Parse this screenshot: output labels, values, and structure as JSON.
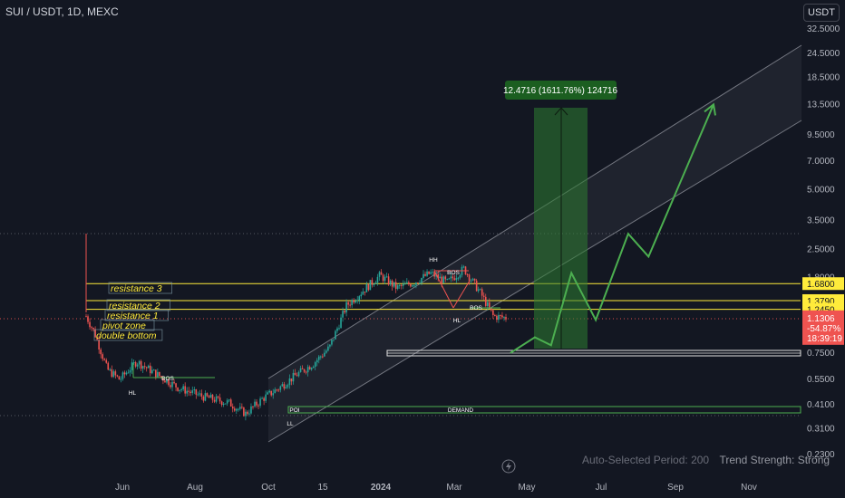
{
  "header": {
    "symbol": "SUI / USDT, 1D, MEXC",
    "currency_button": "USDT"
  },
  "footer": {
    "period_text": "Auto-Selected Period: 200",
    "strength_text": "Trend Strength: Strong"
  },
  "colors": {
    "background": "#131722",
    "up": "#26a69a",
    "down": "#ef5350",
    "zone_line": "#ffeb3b",
    "projection": "#4caf50",
    "target_box": "#2e7d32",
    "channel": "#b2b5be"
  },
  "chart_data": {
    "type": "candlestick",
    "title": "SUI / USDT, 1D, MEXC",
    "y_scale": "log",
    "ylim": [
      0.2,
      35
    ],
    "y_ticks": [
      "32.5000",
      "24.5000",
      "18.5000",
      "13.5000",
      "9.5000",
      "7.0000",
      "5.0000",
      "3.5000",
      "2.5000",
      "1.8000",
      "0.7500",
      "0.5500",
      "0.4100",
      "0.3100",
      "0.2300"
    ],
    "x_ticks": [
      "Jun",
      "Aug",
      "Oct",
      "15",
      "2024",
      "Mar",
      "May",
      "Jul",
      "Sep",
      "Nov"
    ],
    "price_markers": [
      {
        "label": "1.6800",
        "value": 1.68,
        "style": "yellow"
      },
      {
        "label": "1.3790",
        "value": 1.379,
        "style": "yellow"
      },
      {
        "label": "1.2450",
        "value": 1.245,
        "style": "yellow"
      }
    ],
    "current_price": {
      "price": "1.1306",
      "change": "-54.87%",
      "countdown": "18:39:19",
      "value": 1.1306
    },
    "zone_labels": [
      "resistance 3",
      "resistance 2",
      "resistance 1",
      "pivot zone",
      "double bottom"
    ],
    "structure_labels": [
      "BOS",
      "HL",
      "HH",
      "BOS",
      "HL",
      "BOS",
      "POI",
      "LL",
      "DEMAND"
    ],
    "measure_label": "12.4716 (1611.76%) 124716",
    "price_path": [
      [
        0.0,
        1.15
      ],
      [
        0.02,
        0.95
      ],
      [
        0.05,
        0.62
      ],
      [
        0.08,
        0.55
      ],
      [
        0.12,
        0.68
      ],
      [
        0.16,
        0.6
      ],
      [
        0.22,
        0.5
      ],
      [
        0.28,
        0.45
      ],
      [
        0.34,
        0.42
      ],
      [
        0.38,
        0.37
      ],
      [
        0.42,
        0.44
      ],
      [
        0.46,
        0.5
      ],
      [
        0.5,
        0.58
      ],
      [
        0.54,
        0.66
      ],
      [
        0.58,
        0.8
      ],
      [
        0.62,
        1.3
      ],
      [
        0.66,
        1.55
      ],
      [
        0.7,
        1.85
      ],
      [
        0.74,
        1.6
      ],
      [
        0.78,
        1.7
      ],
      [
        0.82,
        1.9
      ],
      [
        0.86,
        1.7
      ],
      [
        0.9,
        2.0
      ],
      [
        0.94,
        1.5
      ],
      [
        0.97,
        1.15
      ],
      [
        1.0,
        1.13
      ]
    ],
    "projection_path": [
      [
        0.0,
        0.75
      ],
      [
        0.12,
        0.9
      ],
      [
        0.2,
        0.82
      ],
      [
        0.3,
        1.9
      ],
      [
        0.42,
        1.1
      ],
      [
        0.58,
        3.0
      ],
      [
        0.68,
        2.3
      ],
      [
        1.0,
        13.5
      ]
    ],
    "annotations": [
      "resistance 3",
      "resistance 2",
      "resistance 1",
      "pivot zone",
      "double bottom"
    ]
  }
}
